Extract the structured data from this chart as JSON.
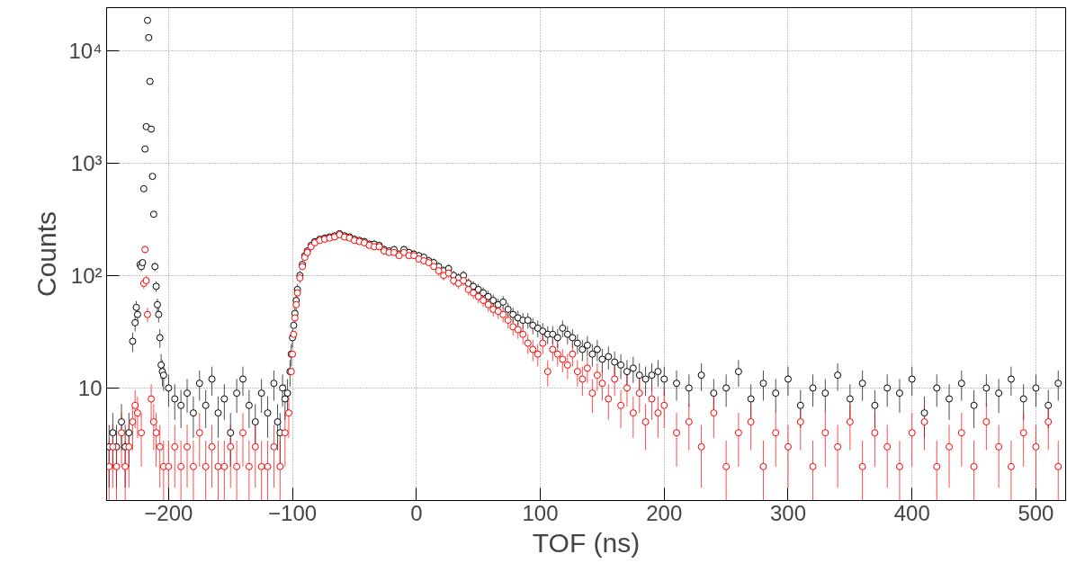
{
  "chart_data": {
    "type": "scatter",
    "xlabel": "TOF (ns)",
    "ylabel": "Counts",
    "log": "y",
    "grid": true,
    "marker": "circle",
    "xlim": [
      -250,
      524
    ],
    "xticks": [
      -200,
      -100,
      0,
      100,
      200,
      300,
      400,
      500
    ],
    "ylim": [
      1,
      24000
    ],
    "yticks": [
      {
        "value": 10,
        "label": "10"
      },
      {
        "value": 100,
        "label": "10²"
      },
      {
        "value": 1000,
        "label": "10³"
      },
      {
        "value": 10000,
        "label": "10⁴"
      }
    ],
    "series": [
      {
        "color": "#000000",
        "x": [
          -248,
          -245,
          -242,
          -238,
          -235,
          -232,
          -229,
          -227,
          -226,
          -225,
          -223,
          -222,
          -221,
          -220,
          -219,
          -218,
          -217,
          -216,
          -215,
          -214,
          -213,
          -212,
          -211,
          -210,
          -209,
          -208,
          -207,
          -206,
          -205,
          -204,
          -200,
          -195,
          -190,
          -185,
          -180,
          -175,
          -170,
          -165,
          -160,
          -155,
          -150,
          -145,
          -140,
          -135,
          -130,
          -125,
          -120,
          -115,
          -112,
          -110,
          -108,
          -106,
          -104,
          -102,
          -101,
          -100,
          -99,
          -98,
          -97,
          -96,
          -94,
          -92,
          -90,
          -88,
          -85,
          -82,
          -78,
          -74,
          -70,
          -66,
          -62,
          -58,
          -54,
          -50,
          -46,
          -42,
          -38,
          -34,
          -30,
          -26,
          -22,
          -18,
          -14,
          -10,
          -6,
          -2,
          2,
          6,
          10,
          14,
          18,
          22,
          26,
          30,
          34,
          38,
          42,
          46,
          50,
          54,
          58,
          62,
          66,
          70,
          74,
          78,
          82,
          86,
          90,
          94,
          98,
          102,
          106,
          110,
          114,
          118,
          122,
          126,
          130,
          134,
          138,
          142,
          146,
          150,
          155,
          160,
          165,
          170,
          175,
          180,
          185,
          190,
          195,
          200,
          210,
          220,
          230,
          240,
          250,
          260,
          270,
          280,
          290,
          300,
          310,
          320,
          330,
          340,
          350,
          360,
          370,
          380,
          390,
          400,
          410,
          420,
          430,
          440,
          450,
          460,
          470,
          480,
          490,
          500,
          510,
          518
        ],
        "values": [
          3,
          4,
          3,
          5,
          3,
          4,
          26,
          38,
          52,
          45,
          125,
          120,
          130,
          590,
          1330,
          2100,
          18500,
          13000,
          5300,
          2000,
          760,
          350,
          120,
          80,
          55,
          45,
          28,
          16,
          14,
          13,
          10,
          8,
          7,
          9,
          6,
          11,
          7,
          12,
          6,
          8,
          4,
          9,
          12,
          7,
          5,
          9,
          6,
          11,
          5,
          4,
          10,
          8,
          9,
          14,
          20,
          28,
          36,
          46,
          60,
          75,
          100,
          125,
          150,
          165,
          185,
          200,
          210,
          215,
          220,
          225,
          235,
          225,
          220,
          210,
          205,
          200,
          190,
          190,
          185,
          170,
          165,
          170,
          155,
          170,
          160,
          155,
          150,
          145,
          135,
          130,
          120,
          110,
          115,
          100,
          95,
          100,
          85,
          80,
          75,
          70,
          65,
          60,
          55,
          58,
          50,
          45,
          42,
          40,
          40,
          36,
          34,
          32,
          30,
          30,
          28,
          34,
          30,
          28,
          25,
          22,
          24,
          20,
          22,
          18,
          19,
          17,
          16,
          14,
          15,
          13,
          12,
          13,
          14,
          12,
          11,
          10,
          13,
          9,
          10,
          14,
          8,
          11,
          9,
          12,
          7,
          10,
          9,
          13,
          8,
          11,
          7,
          10,
          9,
          12,
          6,
          10,
          8,
          11,
          7,
          10,
          9,
          12,
          8,
          10,
          7,
          11
        ],
        "errors": [
          1.7,
          2,
          1.7,
          2.2,
          1.7,
          2,
          5.1,
          6.2,
          7.2,
          6.7,
          11.2,
          11,
          null,
          null,
          null,
          null,
          null,
          null,
          null,
          null,
          null,
          18.7,
          11,
          8.9,
          7.4,
          6.7,
          5.3,
          4,
          3.7,
          3.6,
          3.2,
          2.8,
          2.6,
          3,
          2.4,
          3.3,
          2.6,
          3.5,
          2.4,
          2.8,
          2,
          3,
          3.5,
          2.6,
          2.2,
          3,
          2.4,
          3.3,
          2.2,
          2,
          3.2,
          2.8,
          3,
          3.7,
          4.5,
          5.3,
          null,
          6.8,
          7.7,
          8.7,
          10,
          11.2,
          12.2,
          12.8,
          13.6,
          14.1,
          14.5,
          14.7,
          14.8,
          15,
          15.3,
          15,
          14.8,
          14.5,
          14.3,
          14.1,
          13.8,
          13.8,
          13.6,
          13,
          12.8,
          13,
          12.4,
          13,
          12.6,
          12.4,
          12.2,
          12,
          11.6,
          11.4,
          11,
          10.5,
          10.7,
          10,
          9.7,
          10,
          9.2,
          8.9,
          8.7,
          8.4,
          8.1,
          7.7,
          7.4,
          7.6,
          7.1,
          6.7,
          6.5,
          6.3,
          6.3,
          6,
          5.8,
          5.7,
          5.5,
          5.5,
          5.3,
          5.8,
          5.5,
          5.3,
          5,
          4.7,
          4.9,
          4.5,
          4.7,
          4.2,
          4.4,
          4.1,
          4,
          3.7,
          3.9,
          3.6,
          3.5,
          3.6,
          3.7,
          3.5,
          3.3,
          3.2,
          3.6,
          3,
          3.2,
          3.7,
          2.8,
          3.3,
          3,
          3.5,
          2.6,
          3.2,
          3,
          3.6,
          2.8,
          3.3,
          2.6,
          3.2,
          3,
          3.5,
          2.4,
          3.2,
          2.8,
          3.3,
          2.6,
          3.2,
          3,
          3.5,
          2.8,
          3.2,
          2.6,
          3.3
        ]
      },
      {
        "color": "#ff0000",
        "x": [
          -248,
          -245,
          -242,
          -238,
          -235,
          -232,
          -229,
          -227,
          -225,
          -222,
          -220,
          -219,
          -218,
          -217,
          -214,
          -212,
          -210,
          -207,
          -204,
          -200,
          -195,
          -190,
          -185,
          -180,
          -175,
          -170,
          -165,
          -160,
          -155,
          -150,
          -145,
          -140,
          -135,
          -130,
          -125,
          -120,
          -115,
          -110,
          -106,
          -103,
          -101,
          -100,
          -99,
          -98,
          -97,
          -96,
          -94,
          -92,
          -90,
          -88,
          -85,
          -82,
          -78,
          -74,
          -70,
          -66,
          -62,
          -58,
          -54,
          -50,
          -46,
          -42,
          -38,
          -34,
          -30,
          -26,
          -22,
          -18,
          -14,
          -10,
          -6,
          -2,
          2,
          6,
          10,
          14,
          18,
          22,
          26,
          30,
          34,
          38,
          42,
          46,
          50,
          54,
          58,
          62,
          66,
          70,
          74,
          78,
          82,
          86,
          90,
          94,
          98,
          102,
          106,
          110,
          114,
          118,
          122,
          126,
          130,
          134,
          138,
          142,
          146,
          150,
          155,
          160,
          165,
          170,
          175,
          180,
          185,
          190,
          195,
          200,
          210,
          220,
          230,
          240,
          250,
          260,
          270,
          280,
          290,
          300,
          310,
          320,
          330,
          340,
          350,
          360,
          370,
          380,
          390,
          400,
          410,
          420,
          430,
          440,
          450,
          460,
          470,
          480,
          490,
          500,
          510,
          518
        ],
        "values": [
          2,
          3,
          2,
          4,
          2,
          3,
          5,
          7,
          6,
          4,
          85,
          170,
          90,
          45,
          8,
          5,
          4,
          3,
          2,
          2,
          3,
          2,
          3,
          2,
          4,
          2,
          3,
          2,
          2,
          3,
          2,
          4,
          2,
          3,
          2,
          2,
          3,
          2,
          4,
          6,
          14,
          20,
          30,
          42,
          55,
          70,
          95,
          120,
          145,
          160,
          180,
          195,
          205,
          210,
          215,
          220,
          230,
          220,
          215,
          205,
          200,
          195,
          185,
          180,
          180,
          165,
          160,
          160,
          150,
          160,
          150,
          150,
          140,
          135,
          130,
          120,
          110,
          100,
          105,
          90,
          85,
          90,
          75,
          70,
          65,
          60,
          55,
          50,
          48,
          45,
          40,
          35,
          33,
          30,
          25,
          22,
          20,
          25,
          14,
          22,
          20,
          18,
          16,
          20,
          14,
          12,
          15,
          9,
          13,
          11,
          8,
          12,
          7,
          10,
          6,
          9,
          5,
          8,
          6,
          7,
          4,
          5,
          3,
          6,
          2,
          4,
          5,
          2,
          4,
          3,
          5,
          2,
          4,
          3,
          5,
          2,
          4,
          3,
          2,
          4,
          5,
          2,
          3,
          4,
          2,
          5,
          3,
          2,
          4,
          3,
          5,
          2
        ],
        "errors": [
          [
            1,
            3.4
          ],
          1.7,
          [
            1,
            3.4
          ],
          2,
          [
            1,
            3.4
          ],
          1.7,
          2.2,
          2.6,
          2.4,
          2,
          9.2,
          13,
          9.5,
          6.7,
          2.8,
          2.2,
          2,
          1.7,
          [
            1,
            3.4
          ],
          [
            1,
            3.4
          ],
          1.7,
          [
            1,
            3.4
          ],
          1.7,
          [
            1,
            3.4
          ],
          2,
          [
            1,
            3.4
          ],
          1.7,
          [
            1,
            3.4
          ],
          [
            1,
            3.4
          ],
          1.7,
          [
            1,
            3.4
          ],
          2,
          [
            1,
            3.4
          ],
          1.7,
          [
            1,
            3.4
          ],
          [
            1,
            3.4
          ],
          1.7,
          [
            1,
            3.4
          ],
          2,
          2.4,
          null,
          null,
          null,
          6.5,
          7.4,
          8.4,
          9.7,
          null,
          null,
          null,
          null,
          null,
          null,
          null,
          null,
          null,
          null,
          null,
          null,
          null,
          null,
          null,
          null,
          null,
          null,
          null,
          null,
          null,
          null,
          null,
          null,
          null,
          null,
          null,
          null,
          null,
          10.5,
          10,
          10.2,
          9.5,
          9.2,
          9.5,
          8.7,
          8.4,
          8.1,
          7.7,
          7.4,
          7.1,
          6.9,
          6.7,
          6.3,
          5.9,
          5.7,
          5.5,
          5,
          4.7,
          4.5,
          5,
          3.7,
          4.7,
          4.5,
          4.2,
          4,
          4.5,
          3.7,
          3.5,
          3.9,
          3,
          3.6,
          3.3,
          2.8,
          3.5,
          2.6,
          3.2,
          2.4,
          3,
          2.2,
          2.8,
          2.4,
          2.6,
          2,
          2.2,
          1.7,
          2.4,
          [
            1,
            3.4
          ],
          2,
          2.2,
          [
            1,
            3.4
          ],
          2,
          1.7,
          2.2,
          [
            1,
            3.4
          ],
          2,
          1.7,
          2.2,
          [
            1,
            3.4
          ],
          2,
          1.7,
          [
            1,
            3.4
          ],
          2,
          2.2,
          [
            1,
            3.4
          ],
          1.7,
          2,
          [
            1,
            3.4
          ],
          2.2,
          1.7,
          [
            1,
            3.4
          ],
          2,
          1.7,
          2.2,
          [
            1,
            3.4
          ]
        ]
      }
    ]
  }
}
